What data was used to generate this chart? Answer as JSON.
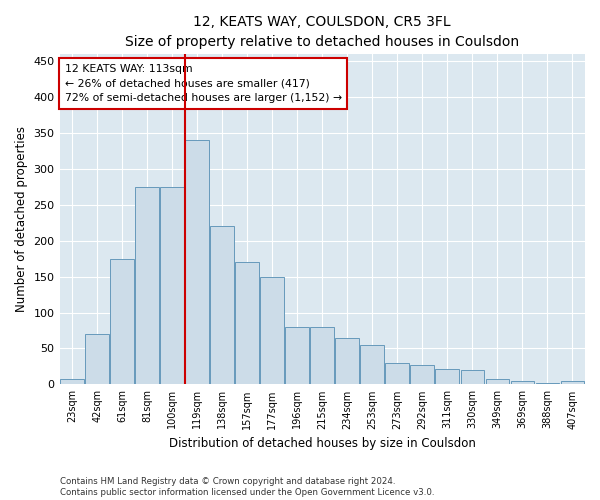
{
  "title": "12, KEATS WAY, COULSDON, CR5 3FL",
  "subtitle": "Size of property relative to detached houses in Coulsdon",
  "xlabel": "Distribution of detached houses by size in Coulsdon",
  "ylabel": "Number of detached properties",
  "bar_color": "#ccdce8",
  "bar_edge_color": "#6699bb",
  "categories": [
    "23sqm",
    "42sqm",
    "61sqm",
    "81sqm",
    "100sqm",
    "119sqm",
    "138sqm",
    "157sqm",
    "177sqm",
    "196sqm",
    "215sqm",
    "234sqm",
    "253sqm",
    "273sqm",
    "292sqm",
    "311sqm",
    "330sqm",
    "349sqm",
    "369sqm",
    "388sqm",
    "407sqm"
  ],
  "values": [
    8,
    70,
    175,
    275,
    275,
    340,
    220,
    170,
    150,
    80,
    80,
    65,
    55,
    30,
    27,
    22,
    20,
    8,
    5,
    2,
    5
  ],
  "vline_color": "#cc0000",
  "vline_pos": 5.0,
  "annotation_line1": "12 KEATS WAY: 113sqm",
  "annotation_line2": "← 26% of detached houses are smaller (417)",
  "annotation_line3": "72% of semi-detached houses are larger (1,152) →",
  "box_color": "#cc0000",
  "ylim": [
    0,
    460
  ],
  "yticks": [
    0,
    50,
    100,
    150,
    200,
    250,
    300,
    350,
    400,
    450
  ],
  "footer1": "Contains HM Land Registry data © Crown copyright and database right 2024.",
  "footer2": "Contains public sector information licensed under the Open Government Licence v3.0.",
  "plot_bg_color": "#dce8f0",
  "fig_bg_color": "#ffffff"
}
